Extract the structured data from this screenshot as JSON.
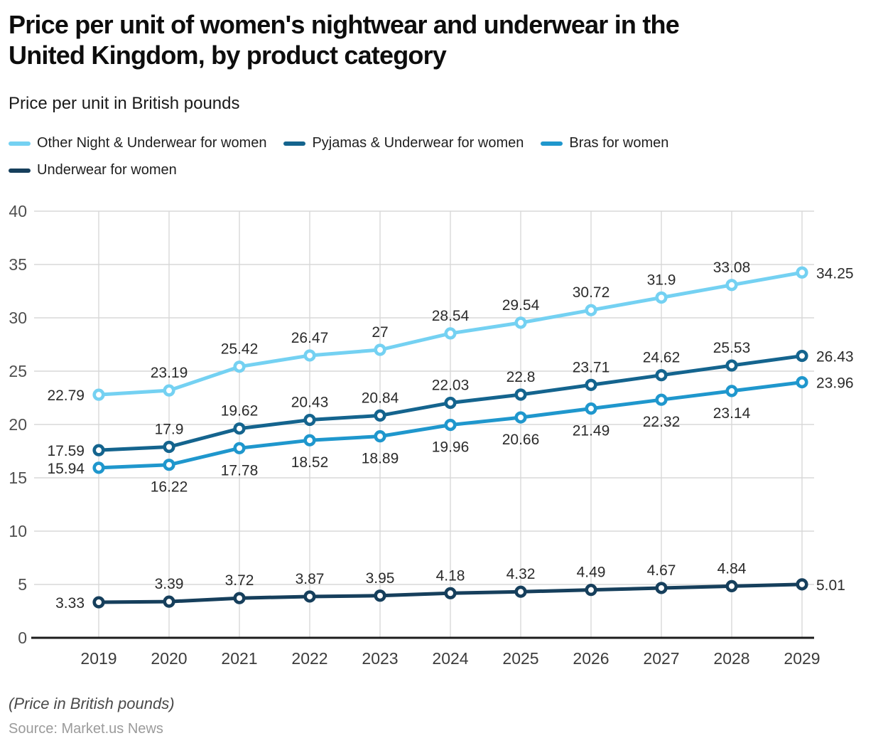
{
  "header": {
    "title": "Price per unit of women's nightwear and underwear in the United Kingdom, by product category",
    "title_line1": "Price per unit of women's nightwear and underwear in the",
    "title_line2": "United Kingdom, by product category",
    "subtitle": "Price per unit in British pounds"
  },
  "footer": {
    "note": "(Price in British pounds)",
    "source": "Source: Market.us News"
  },
  "chart_data": {
    "type": "line",
    "title": "Price per unit of women's nightwear and underwear in the United Kingdom, by product category",
    "ylabel": "Price per unit in British pounds",
    "xlabel": "",
    "x": [
      2019,
      2020,
      2021,
      2022,
      2023,
      2024,
      2025,
      2026,
      2027,
      2028,
      2029
    ],
    "ylim": [
      0,
      40
    ],
    "yticks": [
      0,
      5,
      10,
      15,
      20,
      25,
      30,
      35,
      40
    ],
    "grid": true,
    "legend_position": "top",
    "point_markers": "open-circle",
    "colors": {
      "grid": "#d8d8d8",
      "axis": "#1c1c1c",
      "y_tick_label": "#4f4f4f",
      "x_tick_label": "#3c3c3c",
      "data_label": "#2b2b2b"
    },
    "series": [
      {
        "name": "Other Night & Underwear for women",
        "color": "#74d1f2",
        "values": [
          22.79,
          23.19,
          25.42,
          26.47,
          27,
          28.54,
          29.54,
          30.72,
          31.9,
          33.08,
          34.25
        ],
        "label_placement": {
          "first": "left",
          "middle": "above",
          "last": "right"
        }
      },
      {
        "name": "Pyjamas & Underwear for women",
        "color": "#14648e",
        "values": [
          17.59,
          17.9,
          19.62,
          20.43,
          20.84,
          22.03,
          22.8,
          23.71,
          24.62,
          25.53,
          26.43
        ],
        "label_placement": {
          "first": "left",
          "middle": "above",
          "last": "right"
        }
      },
      {
        "name": "Bras for women",
        "color": "#1f97cd",
        "values": [
          15.94,
          16.22,
          17.78,
          18.52,
          18.89,
          19.96,
          20.66,
          21.49,
          22.32,
          23.14,
          23.96
        ],
        "label_placement": {
          "first": "left",
          "middle": "below",
          "last": "right"
        }
      },
      {
        "name": "Underwear for women",
        "color": "#163f5c",
        "values": [
          3.33,
          3.39,
          3.72,
          3.87,
          3.95,
          4.18,
          4.32,
          4.49,
          4.67,
          4.84,
          5.01
        ],
        "label_placement": {
          "first": "left",
          "middle": "above",
          "last": "right"
        }
      }
    ]
  }
}
